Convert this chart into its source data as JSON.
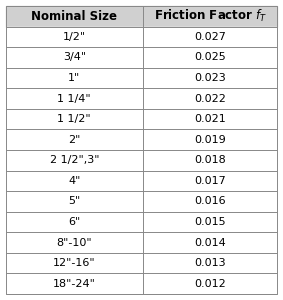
{
  "col1_header": "Nominal Size",
  "col2_header": "Friction Factor $f_T$",
  "rows": [
    [
      "1/2\"",
      "0.027"
    ],
    [
      "3/4\"",
      "0.025"
    ],
    [
      "1\"",
      "0.023"
    ],
    [
      "1 1/4\"",
      "0.022"
    ],
    [
      "1 1/2\"",
      "0.021"
    ],
    [
      "2\"",
      "0.019"
    ],
    [
      "2 1/2\",3\"",
      "0.018"
    ],
    [
      "4\"",
      "0.017"
    ],
    [
      "5\"",
      "0.016"
    ],
    [
      "6\"",
      "0.015"
    ],
    [
      "8\"-10\"",
      "0.014"
    ],
    [
      "12\"-16\"",
      "0.013"
    ],
    [
      "18\"-24\"",
      "0.012"
    ]
  ],
  "header_bg": "#d0d0d0",
  "row_bg": "#ffffff",
  "border_color": "#888888",
  "header_fontsize": 8.5,
  "cell_fontsize": 8.0,
  "fig_width": 2.83,
  "fig_height": 3.0,
  "dpi": 100,
  "col_split": 0.505
}
